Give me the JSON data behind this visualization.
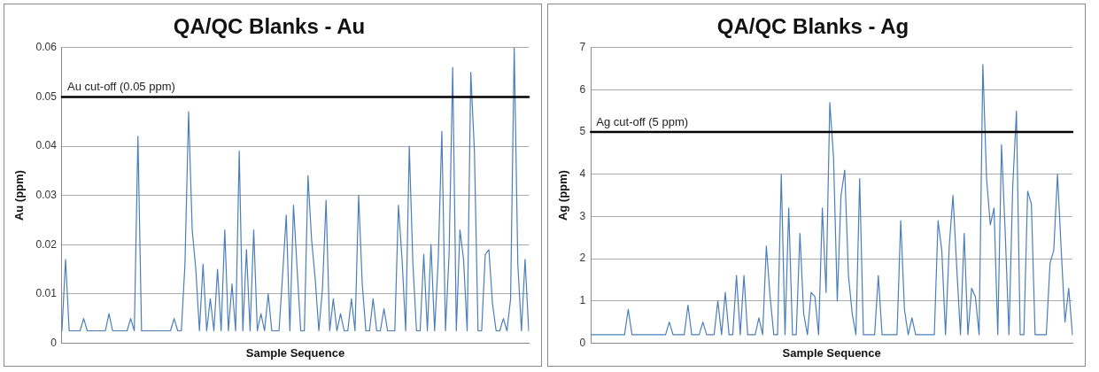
{
  "chart_data": [
    {
      "type": "line",
      "title": "QA/QC Blanks - Au",
      "xlabel": "Sample Sequence",
      "ylabel": "Au (ppm)",
      "categories": [
        null,
        null,
        null,
        null,
        null,
        null,
        null,
        null,
        null,
        null,
        null,
        null,
        null,
        null,
        null,
        null,
        null,
        null,
        null,
        null,
        null,
        null,
        null,
        null,
        null,
        null,
        null,
        null,
        null,
        null,
        null,
        null,
        null,
        null,
        null,
        null,
        null,
        null,
        null,
        null,
        null,
        null,
        null,
        null,
        null,
        null,
        null,
        null,
        null,
        null,
        null,
        null,
        null,
        null,
        null,
        null,
        null,
        null,
        null,
        null,
        null,
        null,
        null,
        null,
        null,
        null,
        null,
        null,
        null,
        null,
        null,
        null,
        null,
        null,
        null,
        null,
        null,
        null,
        null,
        null,
        null,
        null,
        null,
        null,
        null,
        null,
        null,
        null,
        null,
        null,
        null,
        null,
        null,
        null,
        null,
        null,
        null,
        null,
        null,
        null,
        null,
        null,
        null,
        null,
        null,
        null,
        null,
        null,
        null,
        null,
        null,
        null,
        null,
        null,
        null,
        null,
        null,
        null,
        null,
        null,
        null,
        null,
        null,
        null,
        null,
        null,
        null,
        null,
        null,
        null
      ],
      "series": [
        {
          "color": "#4a7ebb",
          "values": [
            0.0025,
            0.017,
            0.0025,
            0.0025,
            0.0025,
            0.0025,
            0.005,
            0.0025,
            0.0025,
            0.0025,
            0.0025,
            0.0025,
            0.0025,
            0.006,
            0.0025,
            0.0025,
            0.0025,
            0.0025,
            0.0025,
            0.005,
            0.0025,
            0.042,
            0.0025,
            0.0025,
            0.0025,
            0.0025,
            0.0025,
            0.0025,
            0.0025,
            0.0025,
            0.0025,
            0.005,
            0.0025,
            0.0025,
            0.016,
            0.047,
            0.023,
            0.015,
            0.0025,
            0.016,
            0.0025,
            0.009,
            0.0025,
            0.015,
            0.0025,
            0.023,
            0.0025,
            0.012,
            0.0025,
            0.039,
            0.0025,
            0.019,
            0.0025,
            0.023,
            0.0025,
            0.006,
            0.0025,
            0.01,
            0.0025,
            0.0025,
            0.0025,
            0.014,
            0.026,
            0.0025,
            0.028,
            0.015,
            0.0025,
            0.0025,
            0.034,
            0.021,
            0.013,
            0.0025,
            0.011,
            0.029,
            0.0025,
            0.009,
            0.0025,
            0.006,
            0.0025,
            0.0025,
            0.009,
            0.0025,
            0.03,
            0.012,
            0.0025,
            0.0025,
            0.009,
            0.0025,
            0.0025,
            0.007,
            0.0025,
            0.0025,
            0.0025,
            0.028,
            0.017,
            0.0025,
            0.04,
            0.016,
            0.0025,
            0.0025,
            0.018,
            0.0025,
            0.02,
            0.0025,
            0.017,
            0.043,
            0.0025,
            0.018,
            0.056,
            0.0025,
            0.023,
            0.017,
            0.0025,
            0.055,
            0.039,
            0.0025,
            0.0025,
            0.018,
            0.019,
            0.008,
            0.0025,
            0.0025,
            0.005,
            0.0025,
            0.009,
            0.06,
            0.016,
            0.0025,
            0.017,
            0.0025
          ]
        }
      ],
      "ylim": [
        0,
        0.06
      ],
      "yticks": [
        0,
        0.01,
        0.02,
        0.03,
        0.04,
        0.05,
        0.06
      ],
      "grid": "y",
      "legend": false,
      "tick_labels": "y",
      "marker": "none",
      "line_style": "solid",
      "ref_lines": [
        {
          "axis": "y",
          "value": 0.05,
          "label": "Au cut-off (0.05 ppm)",
          "color": "#000000"
        }
      ]
    },
    {
      "type": "line",
      "title": "QA/QC Blanks - Ag",
      "xlabel": "Sample Sequence",
      "ylabel": "Ag (ppm)",
      "categories": [
        null,
        null,
        null,
        null,
        null,
        null,
        null,
        null,
        null,
        null,
        null,
        null,
        null,
        null,
        null,
        null,
        null,
        null,
        null,
        null,
        null,
        null,
        null,
        null,
        null,
        null,
        null,
        null,
        null,
        null,
        null,
        null,
        null,
        null,
        null,
        null,
        null,
        null,
        null,
        null,
        null,
        null,
        null,
        null,
        null,
        null,
        null,
        null,
        null,
        null,
        null,
        null,
        null,
        null,
        null,
        null,
        null,
        null,
        null,
        null,
        null,
        null,
        null,
        null,
        null,
        null,
        null,
        null,
        null,
        null,
        null,
        null,
        null,
        null,
        null,
        null,
        null,
        null,
        null,
        null,
        null,
        null,
        null,
        null,
        null,
        null,
        null,
        null,
        null,
        null,
        null,
        null,
        null,
        null,
        null,
        null,
        null,
        null,
        null,
        null,
        null,
        null,
        null,
        null,
        null,
        null,
        null,
        null,
        null,
        null,
        null,
        null,
        null,
        null,
        null,
        null,
        null,
        null,
        null,
        null,
        null,
        null,
        null,
        null,
        null,
        null,
        null,
        null,
        null,
        null
      ],
      "series": [
        {
          "color": "#4a7ebb",
          "values": [
            0.2,
            0.2,
            0.2,
            0.2,
            0.2,
            0.2,
            0.2,
            0.2,
            0.2,
            0.2,
            0.8,
            0.2,
            0.2,
            0.2,
            0.2,
            0.2,
            0.2,
            0.2,
            0.2,
            0.2,
            0.2,
            0.5,
            0.2,
            0.2,
            0.2,
            0.2,
            0.9,
            0.2,
            0.2,
            0.2,
            0.5,
            0.2,
            0.2,
            0.2,
            1.0,
            0.2,
            1.2,
            0.2,
            0.2,
            1.6,
            0.2,
            1.6,
            0.2,
            0.2,
            0.2,
            0.6,
            0.2,
            2.3,
            1.1,
            0.2,
            0.2,
            4.0,
            0.2,
            3.2,
            0.2,
            0.2,
            2.6,
            0.7,
            0.2,
            1.2,
            1.1,
            0.2,
            3.2,
            1.2,
            5.7,
            4.4,
            1.0,
            3.5,
            4.1,
            1.6,
            0.7,
            0.2,
            3.9,
            0.2,
            0.2,
            0.2,
            0.2,
            1.6,
            0.2,
            0.2,
            0.2,
            0.2,
            0.2,
            2.9,
            0.8,
            0.2,
            0.6,
            0.2,
            0.2,
            0.2,
            0.2,
            0.2,
            0.2,
            2.9,
            2.2,
            0.2,
            2.3,
            3.5,
            1.8,
            0.2,
            2.6,
            0.2,
            1.3,
            1.1,
            0.2,
            6.6,
            3.9,
            2.8,
            3.2,
            0.2,
            4.7,
            2.6,
            0.2,
            3.7,
            5.5,
            0.2,
            0.2,
            3.6,
            3.3,
            0.2,
            0.2,
            0.2,
            0.2,
            1.9,
            2.2,
            4.0,
            2.2,
            0.5,
            1.3,
            0.2
          ]
        }
      ],
      "ylim": [
        0,
        7
      ],
      "yticks": [
        0,
        1,
        2,
        3,
        4,
        5,
        6,
        7
      ],
      "grid": "y",
      "legend": false,
      "tick_labels": "y",
      "marker": "none",
      "line_style": "solid",
      "ref_lines": [
        {
          "axis": "y",
          "value": 5,
          "label": "Ag cut-off (5 ppm)",
          "color": "#000000"
        }
      ]
    }
  ]
}
